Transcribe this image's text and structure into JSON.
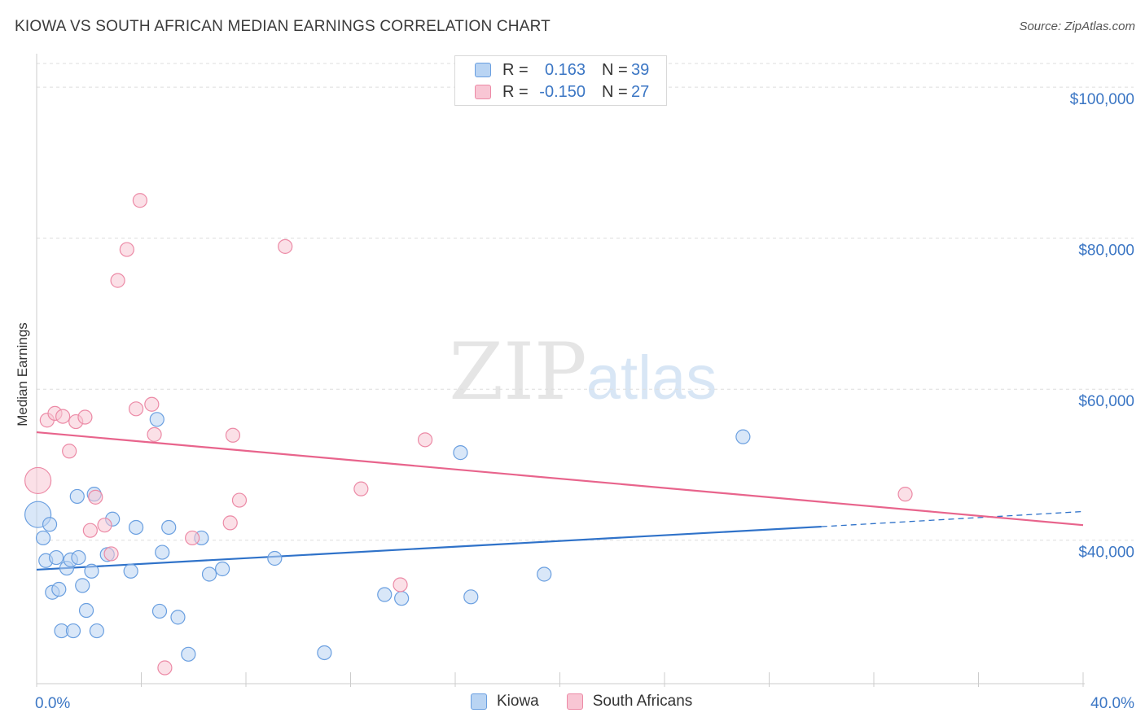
{
  "header": {
    "title": "KIOWA VS SOUTH AFRICAN MEDIAN EARNINGS CORRELATION CHART",
    "source": "Source: ZipAtlas.com"
  },
  "watermark": {
    "zip": "ZIP",
    "atlas": "atlas"
  },
  "legend_top": {
    "rows": [
      {
        "r_label": "R =",
        "r_value": "0.163",
        "n_label": "N =",
        "n_value": "39"
      },
      {
        "r_label": "R =",
        "r_value": "-0.150",
        "n_label": "N =",
        "n_value": "27"
      }
    ]
  },
  "legend_bottom": {
    "items": [
      "Kiowa",
      "South Africans"
    ]
  },
  "colors": {
    "kiowa_fill": "#b9d4f3",
    "kiowa_stroke": "#6a9fe0",
    "kiowa_line": "#2f72c9",
    "sa_fill": "#f8c6d4",
    "sa_stroke": "#ec8aa6",
    "sa_line": "#e8648c",
    "tick_text": "#3b76c4",
    "grid": "#dddddd"
  },
  "chart_data": {
    "type": "scatter",
    "title": "KIOWA VS SOUTH AFRICAN MEDIAN EARNINGS CORRELATION CHART",
    "xlabel": "",
    "ylabel": "Median Earnings",
    "xlim": [
      0,
      40
    ],
    "ylim": [
      21000,
      104000
    ],
    "x_tick_labels": [
      {
        "value": 0,
        "label": "0.0%"
      },
      {
        "value": 40,
        "label": "40.0%"
      }
    ],
    "y_ticks": [
      {
        "value": 40000,
        "label": "$40,000"
      },
      {
        "value": 60000,
        "label": "$60,000"
      },
      {
        "value": 80000,
        "label": "$80,000"
      },
      {
        "value": 100000,
        "label": "$100,000"
      }
    ],
    "series": [
      {
        "name": "Kiowa",
        "r": 0.163,
        "n": 39,
        "trend": {
          "x_start": 0,
          "y_start": 36100,
          "x_solid_end": 30,
          "y_solid_end": 41800,
          "x_dash_end": 40,
          "y_dash_end": 43800
        },
        "points": [
          {
            "x": 0.05,
            "y": 43400,
            "big": true
          },
          {
            "x": 0.25,
            "y": 40300
          },
          {
            "x": 0.35,
            "y": 37300
          },
          {
            "x": 0.5,
            "y": 42100
          },
          {
            "x": 0.6,
            "y": 33100
          },
          {
            "x": 0.75,
            "y": 37700
          },
          {
            "x": 0.85,
            "y": 33500
          },
          {
            "x": 0.95,
            "y": 28000
          },
          {
            "x": 1.15,
            "y": 36300
          },
          {
            "x": 1.3,
            "y": 37400
          },
          {
            "x": 1.4,
            "y": 28000
          },
          {
            "x": 1.55,
            "y": 45800
          },
          {
            "x": 1.6,
            "y": 37700
          },
          {
            "x": 1.75,
            "y": 34000
          },
          {
            "x": 1.9,
            "y": 30700
          },
          {
            "x": 2.1,
            "y": 35900
          },
          {
            "x": 2.2,
            "y": 46100
          },
          {
            "x": 2.3,
            "y": 28000
          },
          {
            "x": 2.7,
            "y": 38100
          },
          {
            "x": 2.9,
            "y": 42800
          },
          {
            "x": 3.6,
            "y": 35900
          },
          {
            "x": 3.8,
            "y": 41700
          },
          {
            "x": 4.6,
            "y": 56000
          },
          {
            "x": 4.7,
            "y": 30600
          },
          {
            "x": 4.8,
            "y": 38400
          },
          {
            "x": 5.05,
            "y": 41700
          },
          {
            "x": 5.4,
            "y": 29800
          },
          {
            "x": 5.8,
            "y": 24900
          },
          {
            "x": 6.3,
            "y": 40300
          },
          {
            "x": 6.6,
            "y": 35500
          },
          {
            "x": 7.1,
            "y": 36200
          },
          {
            "x": 9.1,
            "y": 37600
          },
          {
            "x": 11.0,
            "y": 25100
          },
          {
            "x": 13.3,
            "y": 32800
          },
          {
            "x": 13.95,
            "y": 32300
          },
          {
            "x": 16.2,
            "y": 51600
          },
          {
            "x": 16.6,
            "y": 32500
          },
          {
            "x": 19.4,
            "y": 35500
          },
          {
            "x": 27.0,
            "y": 53700
          }
        ]
      },
      {
        "name": "South Africans",
        "r": -0.15,
        "n": 27,
        "trend": {
          "x_start": 0,
          "y_start": 54300,
          "x_end": 40,
          "y_end": 42000
        },
        "points": [
          {
            "x": 0.05,
            "y": 47900,
            "big": true
          },
          {
            "x": 0.4,
            "y": 55900
          },
          {
            "x": 0.7,
            "y": 56800
          },
          {
            "x": 1.0,
            "y": 56400
          },
          {
            "x": 1.25,
            "y": 51800
          },
          {
            "x": 1.5,
            "y": 55700
          },
          {
            "x": 1.85,
            "y": 56300
          },
          {
            "x": 2.05,
            "y": 41300
          },
          {
            "x": 2.25,
            "y": 45700
          },
          {
            "x": 2.6,
            "y": 42000
          },
          {
            "x": 2.85,
            "y": 38200
          },
          {
            "x": 3.1,
            "y": 74400
          },
          {
            "x": 3.45,
            "y": 78500
          },
          {
            "x": 3.8,
            "y": 57400
          },
          {
            "x": 3.95,
            "y": 85000
          },
          {
            "x": 4.4,
            "y": 58000
          },
          {
            "x": 4.5,
            "y": 54000
          },
          {
            "x": 4.9,
            "y": 23100
          },
          {
            "x": 5.95,
            "y": 40300
          },
          {
            "x": 7.4,
            "y": 42300
          },
          {
            "x": 7.5,
            "y": 53900
          },
          {
            "x": 7.75,
            "y": 45300
          },
          {
            "x": 9.5,
            "y": 78900
          },
          {
            "x": 12.4,
            "y": 46800
          },
          {
            "x": 13.9,
            "y": 34100
          },
          {
            "x": 14.85,
            "y": 53300
          },
          {
            "x": 33.2,
            "y": 46100
          }
        ]
      }
    ]
  }
}
